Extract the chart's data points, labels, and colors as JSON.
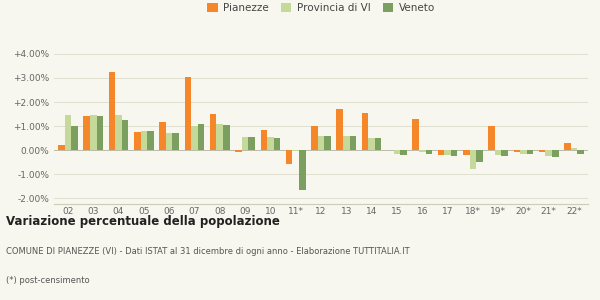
{
  "categories": [
    "02",
    "03",
    "04",
    "05",
    "06",
    "07",
    "08",
    "09",
    "10",
    "11*",
    "12",
    "13",
    "14",
    "15",
    "16",
    "17",
    "18*",
    "19*",
    "20*",
    "21*",
    "22*"
  ],
  "pianezze": [
    0.2,
    1.4,
    3.25,
    0.75,
    1.15,
    3.05,
    1.5,
    -0.1,
    0.85,
    -0.6,
    1.0,
    1.7,
    1.55,
    0.0,
    1.3,
    -0.2,
    -0.2,
    1.0,
    -0.1,
    -0.1,
    0.3
  ],
  "provincia_vi": [
    1.45,
    1.45,
    1.45,
    0.8,
    0.7,
    1.0,
    1.1,
    0.55,
    0.55,
    -0.05,
    0.6,
    0.6,
    0.5,
    -0.15,
    -0.1,
    -0.2,
    -0.8,
    -0.2,
    -0.15,
    -0.25,
    0.1
  ],
  "veneto": [
    1.0,
    1.4,
    1.25,
    0.8,
    0.7,
    1.1,
    1.05,
    0.55,
    0.5,
    -1.65,
    0.6,
    0.6,
    0.5,
    -0.2,
    -0.15,
    -0.25,
    -0.5,
    -0.25,
    -0.15,
    -0.3,
    -0.15
  ],
  "color_pianezze": "#f5872a",
  "color_provincia": "#c5d99a",
  "color_veneto": "#7a9f5e",
  "background_color": "#f7f7ef",
  "grid_color": "#e0e0d0",
  "title": "Variazione percentuale della popolazione",
  "legend_labels": [
    "Pianezze",
    "Provincia di VI",
    "Veneto"
  ],
  "footnote1": "COMUNE DI PIANEZZE (VI) - Dati ISTAT al 31 dicembre di ogni anno - Elaborazione TUTTITALIA.IT",
  "footnote2": "(*) post-censimento",
  "ylim": [
    -2.25,
    4.5
  ],
  "yticks": [
    -2.0,
    -1.0,
    0.0,
    1.0,
    2.0,
    3.0,
    4.0
  ]
}
